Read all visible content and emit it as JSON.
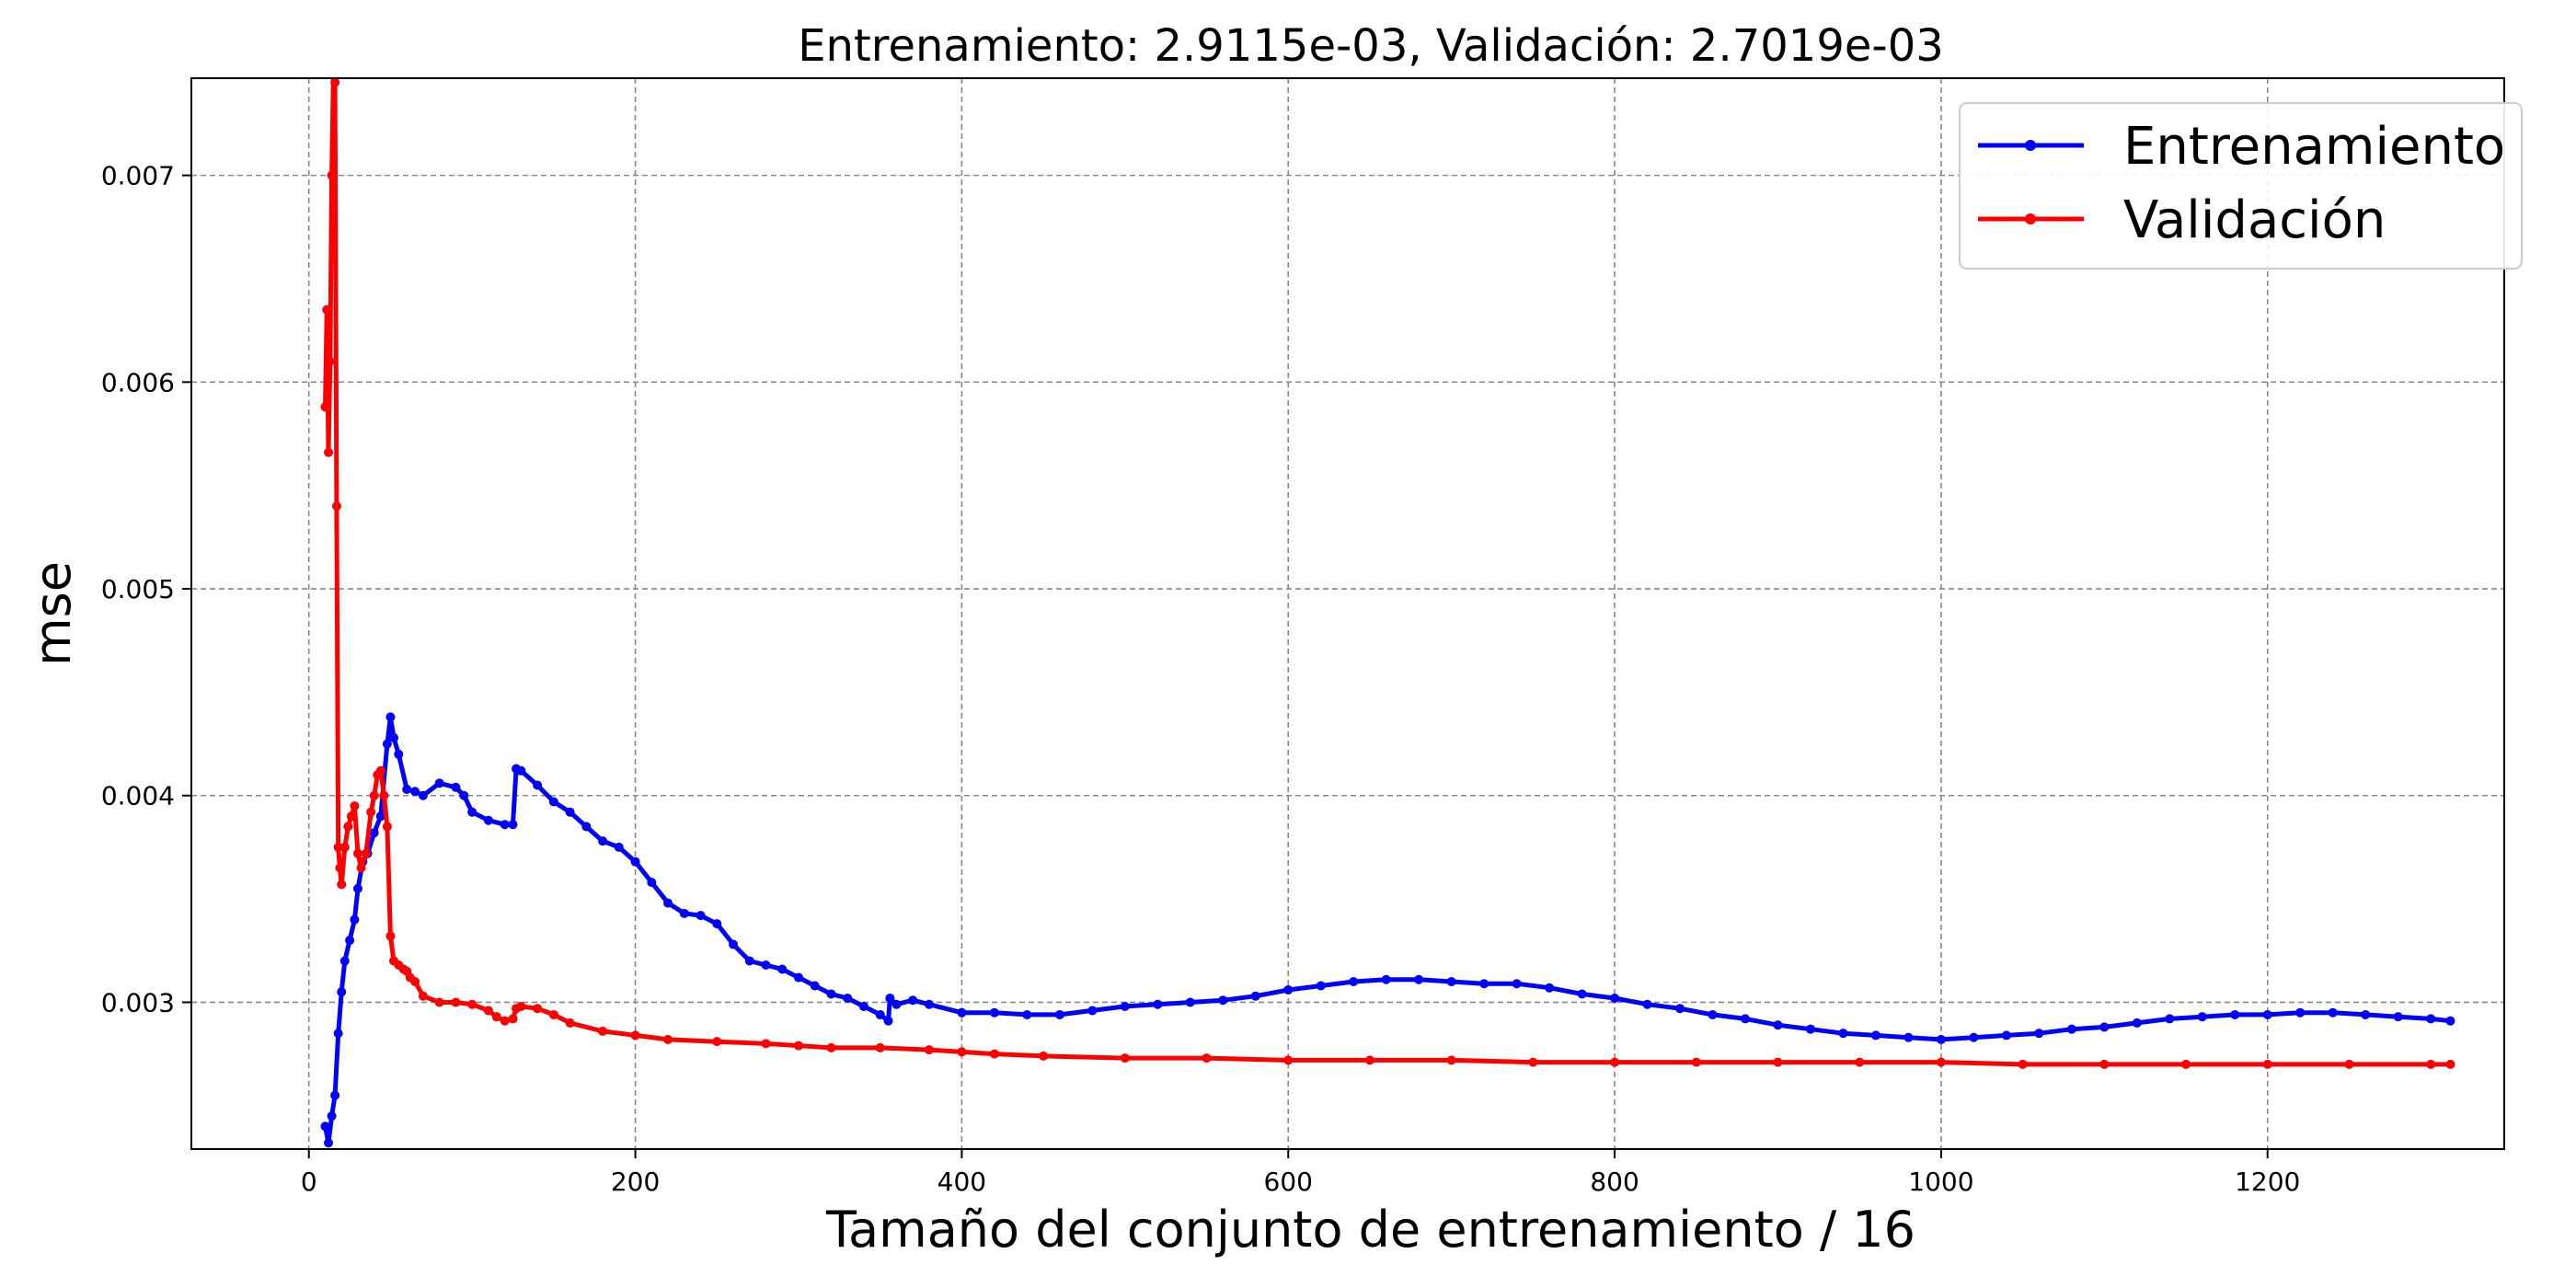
{
  "chart_data": {
    "type": "line",
    "title": "Entrenamiento: 2.9115e-03, Validación: 2.7019e-03",
    "xlabel": "Tamaño del conjunto de entrenamiento / 16",
    "ylabel": "mse",
    "xlim": [
      -72,
      1345
    ],
    "ylim": [
      0.00229,
      0.00747
    ],
    "xticks": [
      0,
      200,
      400,
      600,
      800,
      1000,
      1200
    ],
    "xtick_labels": [
      "0",
      "200",
      "400",
      "600",
      "800",
      "1000",
      "1200"
    ],
    "yticks": [
      0.003,
      0.004,
      0.005,
      0.006,
      0.007
    ],
    "ytick_labels": [
      "0.003",
      "0.004",
      "0.005",
      "0.006",
      "0.007"
    ],
    "grid": true,
    "legend_position": "top-right",
    "series": [
      {
        "name": "Entrenamiento",
        "color": "#0000ff",
        "x": [
          10,
          12,
          14,
          16,
          18,
          20,
          22,
          25,
          28,
          30,
          33,
          36,
          40,
          44,
          48,
          50,
          52,
          55,
          60,
          65,
          70,
          80,
          90,
          95,
          100,
          110,
          120,
          125,
          127,
          130,
          140,
          150,
          160,
          170,
          180,
          190,
          200,
          210,
          220,
          230,
          240,
          250,
          260,
          270,
          280,
          290,
          300,
          310,
          320,
          330,
          340,
          350,
          355,
          356,
          360,
          370,
          380,
          400,
          420,
          440,
          460,
          480,
          500,
          520,
          540,
          560,
          580,
          600,
          620,
          640,
          660,
          680,
          700,
          720,
          740,
          760,
          780,
          800,
          820,
          840,
          860,
          880,
          900,
          920,
          940,
          960,
          980,
          1000,
          1020,
          1040,
          1060,
          1080,
          1100,
          1120,
          1140,
          1160,
          1180,
          1200,
          1220,
          1240,
          1260,
          1280,
          1300,
          1312
        ],
        "y": [
          0.0024,
          0.00232,
          0.00245,
          0.00255,
          0.00285,
          0.00305,
          0.0032,
          0.0033,
          0.0034,
          0.00355,
          0.00368,
          0.00372,
          0.00382,
          0.0039,
          0.00425,
          0.00438,
          0.00428,
          0.0042,
          0.00403,
          0.00402,
          0.004,
          0.00406,
          0.00404,
          0.004,
          0.00392,
          0.00388,
          0.00386,
          0.00386,
          0.00413,
          0.00412,
          0.00405,
          0.00397,
          0.00392,
          0.00385,
          0.00378,
          0.00375,
          0.00368,
          0.00358,
          0.00348,
          0.00343,
          0.00342,
          0.00338,
          0.00328,
          0.0032,
          0.00318,
          0.00316,
          0.00312,
          0.00308,
          0.00304,
          0.00302,
          0.00298,
          0.00294,
          0.00291,
          0.00302,
          0.00299,
          0.00301,
          0.00299,
          0.00295,
          0.00295,
          0.00294,
          0.00294,
          0.00296,
          0.00298,
          0.00299,
          0.003,
          0.00301,
          0.00303,
          0.00306,
          0.00308,
          0.0031,
          0.00311,
          0.00311,
          0.0031,
          0.00309,
          0.00309,
          0.00307,
          0.00304,
          0.00302,
          0.00299,
          0.00297,
          0.00294,
          0.00292,
          0.00289,
          0.00287,
          0.00285,
          0.00284,
          0.00283,
          0.00282,
          0.00283,
          0.00284,
          0.00285,
          0.00287,
          0.00288,
          0.0029,
          0.00292,
          0.00293,
          0.00294,
          0.00294,
          0.00295,
          0.00295,
          0.00294,
          0.00293,
          0.00292,
          0.00291
        ]
      },
      {
        "name": "Validación",
        "color": "#ff0000",
        "x": [
          10,
          11,
          12,
          13,
          14,
          15,
          16,
          17,
          18,
          19,
          20,
          22,
          24,
          26,
          28,
          30,
          32,
          35,
          38,
          40,
          42,
          44,
          46,
          48,
          50,
          52,
          55,
          58,
          60,
          62,
          65,
          70,
          80,
          90,
          100,
          110,
          115,
          120,
          125,
          127,
          130,
          140,
          150,
          160,
          180,
          200,
          220,
          250,
          280,
          300,
          320,
          350,
          380,
          400,
          420,
          450,
          500,
          550,
          600,
          650,
          700,
          750,
          800,
          850,
          900,
          950,
          1000,
          1050,
          1100,
          1150,
          1200,
          1250,
          1300,
          1312
        ],
        "y": [
          0.00588,
          0.00635,
          0.00566,
          0.0061,
          0.007,
          0.0075,
          0.00745,
          0.0054,
          0.00375,
          0.00365,
          0.00357,
          0.00375,
          0.00385,
          0.0039,
          0.00395,
          0.00372,
          0.00365,
          0.00372,
          0.00392,
          0.004,
          0.0041,
          0.00412,
          0.004,
          0.00385,
          0.00332,
          0.0032,
          0.00318,
          0.00316,
          0.00315,
          0.00312,
          0.0031,
          0.00303,
          0.003,
          0.003,
          0.00299,
          0.00296,
          0.00293,
          0.00291,
          0.00292,
          0.00297,
          0.00298,
          0.00297,
          0.00294,
          0.0029,
          0.00286,
          0.00284,
          0.00282,
          0.00281,
          0.0028,
          0.00279,
          0.00278,
          0.00278,
          0.00277,
          0.00276,
          0.00275,
          0.00274,
          0.00273,
          0.00273,
          0.00272,
          0.00272,
          0.00272,
          0.00271,
          0.00271,
          0.00271,
          0.00271,
          0.00271,
          0.00271,
          0.0027,
          0.0027,
          0.0027,
          0.0027,
          0.0027,
          0.0027,
          0.0027
        ]
      }
    ]
  }
}
